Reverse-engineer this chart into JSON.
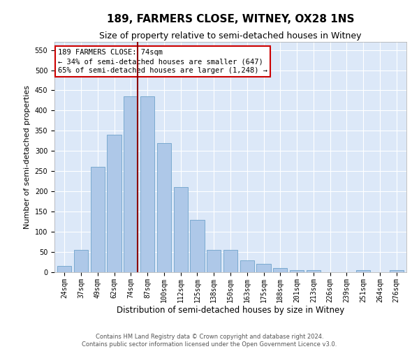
{
  "title": "189, FARMERS CLOSE, WITNEY, OX28 1NS",
  "subtitle": "Size of property relative to semi-detached houses in Witney",
  "xlabel": "Distribution of semi-detached houses by size in Witney",
  "ylabel": "Number of semi-detached properties",
  "footnote1": "Contains HM Land Registry data © Crown copyright and database right 2024.",
  "footnote2": "Contains public sector information licensed under the Open Government Licence v3.0.",
  "annotation_title": "189 FARMERS CLOSE: 74sqm",
  "annotation_line1": "← 34% of semi-detached houses are smaller (647)",
  "annotation_line2": "65% of semi-detached houses are larger (1,248) →",
  "categories": [
    "24sqm",
    "37sqm",
    "49sqm",
    "62sqm",
    "74sqm",
    "87sqm",
    "100sqm",
    "112sqm",
    "125sqm",
    "138sqm",
    "150sqm",
    "163sqm",
    "175sqm",
    "188sqm",
    "201sqm",
    "213sqm",
    "226sqm",
    "239sqm",
    "251sqm",
    "264sqm",
    "276sqm"
  ],
  "values": [
    15,
    55,
    260,
    340,
    435,
    435,
    320,
    210,
    130,
    55,
    55,
    30,
    20,
    10,
    5,
    5,
    0,
    0,
    5,
    0,
    5
  ],
  "vline_index": 4,
  "bar_color": "#aec8e8",
  "bar_edge_color": "#7aaad0",
  "vline_color": "#8b0000",
  "ylim": [
    0,
    570
  ],
  "yticks": [
    0,
    50,
    100,
    150,
    200,
    250,
    300,
    350,
    400,
    450,
    500,
    550
  ],
  "background_color": "#ffffff",
  "plot_bg_color": "#dce8f8",
  "grid_color": "#ffffff",
  "annotation_box_facecolor": "#ffffff",
  "annotation_box_edgecolor": "#cc0000",
  "title_fontsize": 11,
  "subtitle_fontsize": 9,
  "ylabel_fontsize": 8,
  "xlabel_fontsize": 8.5,
  "tick_fontsize": 7,
  "annotation_fontsize": 7.5,
  "footer_fontsize": 6
}
